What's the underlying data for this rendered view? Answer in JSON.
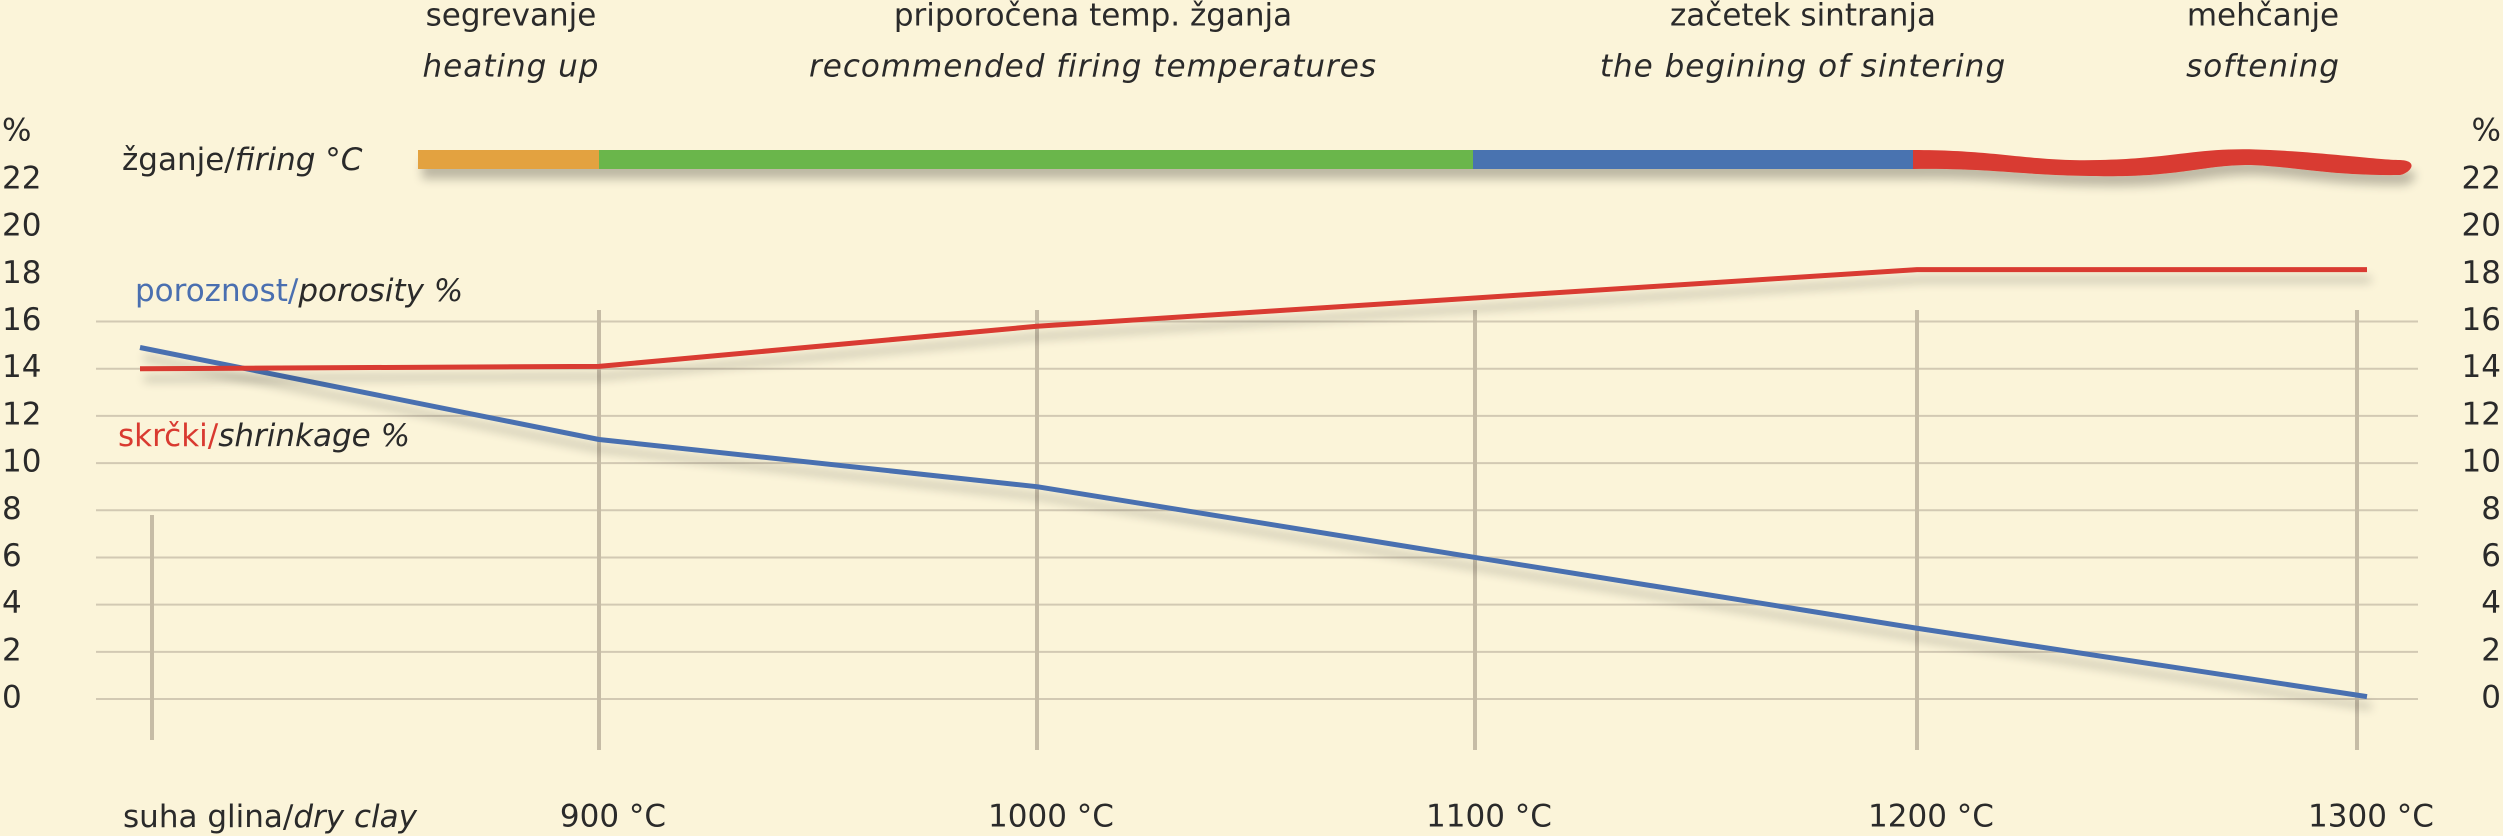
{
  "chart_data": {
    "type": "line",
    "firing_label": "žganje/firing °C",
    "phases": [
      {
        "name": "segrevanje",
        "name_en": "heating up",
        "color": "#e3a23f"
      },
      {
        "name": "priporočena temp. žganja",
        "name_en": "recommended firing temperatures",
        "color": "#6ab64c"
      },
      {
        "name": "začetek sintranja",
        "name_en": "the begining of sintering",
        "color": "#4a73b0"
      },
      {
        "name": "mehčanje",
        "name_en": "softening",
        "color": "#d93a30"
      }
    ],
    "categories": [
      "suha glina/dry clay",
      "900 °C",
      "1000 °C",
      "1100 °C",
      "1200 °C",
      "1300 °C"
    ],
    "series": [
      {
        "name": "poroznost/porosity %",
        "color": "#4a6fb0",
        "values": [
          14.9,
          11,
          9,
          6,
          3,
          0.1
        ]
      },
      {
        "name": "skrčki/shrinkage %",
        "color": "#d93a30",
        "values": [
          14,
          14.1,
          15.8,
          17,
          18.2,
          18.2
        ]
      }
    ],
    "y_unit": "%",
    "ylim": [
      0,
      22
    ],
    "yticks": [
      0,
      2,
      4,
      6,
      8,
      10,
      12,
      14,
      16,
      18,
      20,
      22
    ],
    "grid": true
  }
}
